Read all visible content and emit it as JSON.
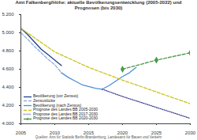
{
  "chart_data": {
    "type": "line",
    "title": "Amt Falkenberg/Höhe: aktuelle Bevölkerungsentwicklung (2005-2022) und Prognosen (bis 2030)",
    "caption": "Quellen: Amt für Statistik Berlin-Brandenburg, Landesamt für Bauen und Verkehr",
    "xlim": [
      2005,
      2030
    ],
    "xticks": [
      2005,
      2010,
      2015,
      2020,
      2025,
      2030
    ],
    "ylim": [
      4000,
      5200
    ],
    "yticks": [
      {
        "value": 4000,
        "label": "4.000"
      },
      {
        "value": 4200,
        "label": "4.200"
      },
      {
        "value": 4400,
        "label": "4.400"
      },
      {
        "value": 4600,
        "label": "4.600"
      },
      {
        "value": 4800,
        "label": "4.800"
      },
      {
        "value": 5000,
        "label": "5.000"
      },
      {
        "value": 5200,
        "label": "5.200"
      }
    ],
    "grid": false,
    "legend": "lower left",
    "series": [
      {
        "name": "Bevölkerung (vor Zensus)",
        "color": "#1f3f8f",
        "line_style": "solid",
        "x": [
          2005,
          2006,
          2007,
          2008,
          2009,
          2010,
          2011
        ],
        "values": [
          5050,
          4980,
          4900,
          4820,
          4760,
          4700,
          4640
        ]
      },
      {
        "name": "Zensuslücke",
        "color": "#8fb0d8",
        "line_style": "dashed",
        "x": [
          2005,
          2006,
          2007,
          2008,
          2009,
          2010,
          2011
        ],
        "values": [
          5000,
          4930,
          4850,
          4780,
          4710,
          4650,
          4560
        ]
      },
      {
        "name": "Bevölkerung (nach Zensus)",
        "color": "#4a90d9",
        "line_style": "solid",
        "x": [
          2011,
          2012,
          2013,
          2014,
          2015,
          2016,
          2017,
          2018,
          2019,
          2020,
          2021,
          2022
        ],
        "values": [
          4560,
          4510,
          4470,
          4430,
          4410,
          4390,
          4380,
          4420,
          4470,
          4520,
          4560,
          4620
        ]
      },
      {
        "name": "Prognose des Landes BB 2005-2030",
        "color": "#c8c41a",
        "line_style": "dashed",
        "x": [
          2005,
          2010,
          2015,
          2020,
          2025,
          2030
        ],
        "values": [
          5050,
          4790,
          4620,
          4480,
          4350,
          4220
        ]
      },
      {
        "name": "Prognose des Landes BB 2017-2030",
        "color": "#3b3b8f",
        "line_style": "dotted",
        "x": [
          2017,
          2020,
          2025,
          2030
        ],
        "values": [
          4380,
          4300,
          4180,
          4060
        ]
      },
      {
        "name": "Prognose des Landes BB 2020-2030",
        "color": "#4c9a4c",
        "line_style": "dashed",
        "marker": "diamond",
        "x": [
          2020,
          2025,
          2030
        ],
        "values": [
          4600,
          4700,
          4780
        ]
      }
    ]
  }
}
